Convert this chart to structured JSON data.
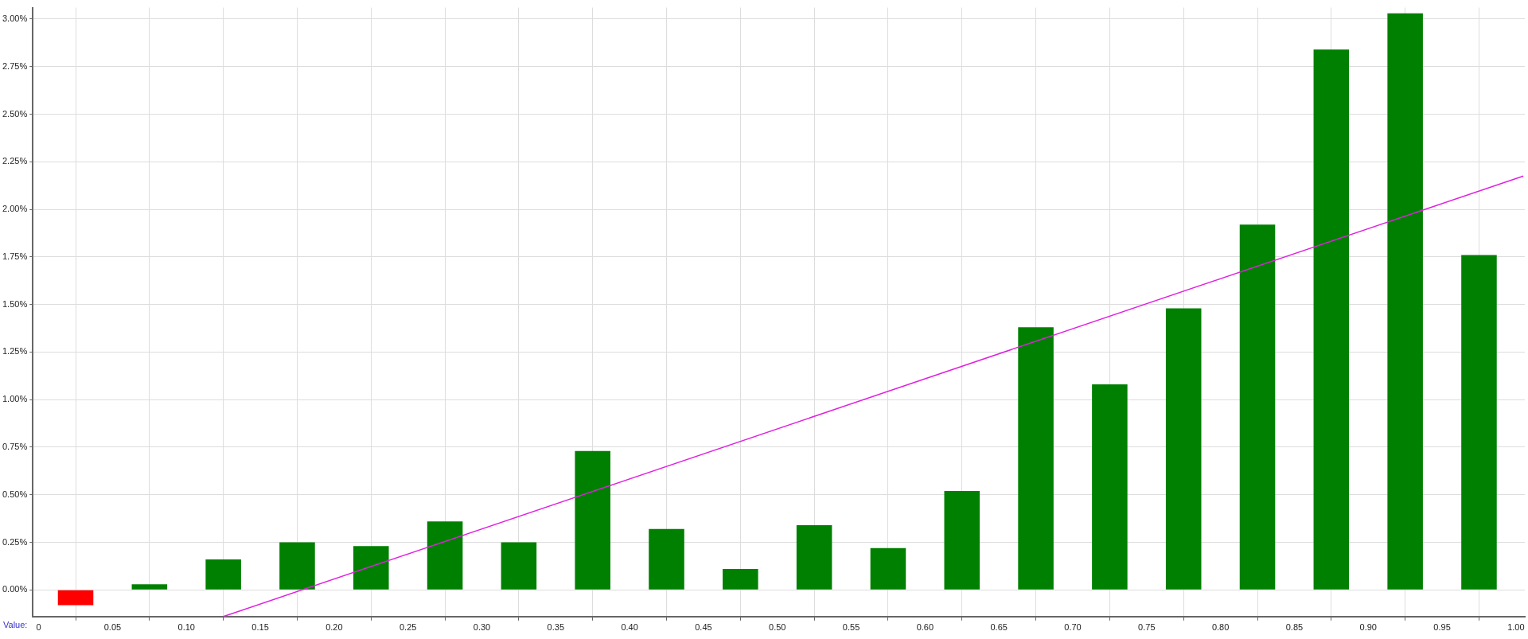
{
  "chart_data": {
    "type": "bar",
    "xlabel": "Value:",
    "x": [
      0.025,
      0.075,
      0.125,
      0.175,
      0.225,
      0.275,
      0.325,
      0.375,
      0.425,
      0.475,
      0.525,
      0.575,
      0.625,
      0.675,
      0.725,
      0.775,
      0.825,
      0.875,
      0.925,
      0.975
    ],
    "series": [
      {
        "values": [
          -0.08,
          0.03,
          0.16,
          0.25,
          0.23,
          0.36,
          0.25,
          0.73,
          0.32,
          0.11,
          0.34,
          0.22,
          0.52,
          1.38,
          1.08,
          1.48,
          1.92,
          2.84,
          3.03,
          1.76
        ],
        "colors": [
          "#ff0000",
          "#008000",
          "#008000",
          "#008000",
          "#008000",
          "#008000",
          "#008000",
          "#008000",
          "#008000",
          "#008000",
          "#008000",
          "#008000",
          "#008000",
          "#008000",
          "#008000",
          "#008000",
          "#008000",
          "#008000",
          "#008000",
          "#008000"
        ]
      },
      {
        "type": "line",
        "x": [
          0.125,
          1.005
        ],
        "values": [
          -0.14,
          2.175
        ],
        "color": "#e020e0"
      }
    ],
    "xlim": [
      -0.004,
      1.006
    ],
    "ylim": [
      -0.14,
      3.06
    ],
    "xticks": [
      0,
      0.05,
      {
        "value": 0.1,
        "label": "0.10"
      },
      0.15,
      {
        "value": 0.2,
        "label": "0.20"
      },
      0.25,
      {
        "value": 0.3,
        "label": "0.30"
      },
      0.35,
      {
        "value": 0.4,
        "label": "0.40"
      },
      0.45,
      {
        "value": 0.5,
        "label": "0.50"
      },
      0.55,
      {
        "value": 0.6,
        "label": "0.60"
      },
      0.65,
      {
        "value": 0.7,
        "label": "0.70"
      },
      0.75,
      {
        "value": 0.8,
        "label": "0.80"
      },
      0.85,
      {
        "value": 0.9,
        "label": "0.90"
      },
      0.95,
      {
        "value": 1,
        "label": "1.00"
      }
    ],
    "yticks": [
      {
        "value": 0,
        "label": "0.00%"
      },
      {
        "value": 0.25,
        "label": "0.25%"
      },
      {
        "value": 0.5,
        "label": "0.50%"
      },
      {
        "value": 0.75,
        "label": "0.75%"
      },
      {
        "value": 1,
        "label": "1.00%"
      },
      {
        "value": 1.25,
        "label": "1.25%"
      },
      {
        "value": 1.5,
        "label": "1.50%"
      },
      {
        "value": 1.75,
        "label": "1.75%"
      },
      {
        "value": 2,
        "label": "2.00%"
      },
      {
        "value": 2.25,
        "label": "2.25%"
      },
      {
        "value": 2.5,
        "label": "2.50%"
      },
      {
        "value": 2.75,
        "label": "2.75%"
      },
      {
        "value": 3,
        "label": "3.00%"
      }
    ],
    "grid": true,
    "legend": false,
    "marker": "none",
    "line_style": "solid"
  }
}
